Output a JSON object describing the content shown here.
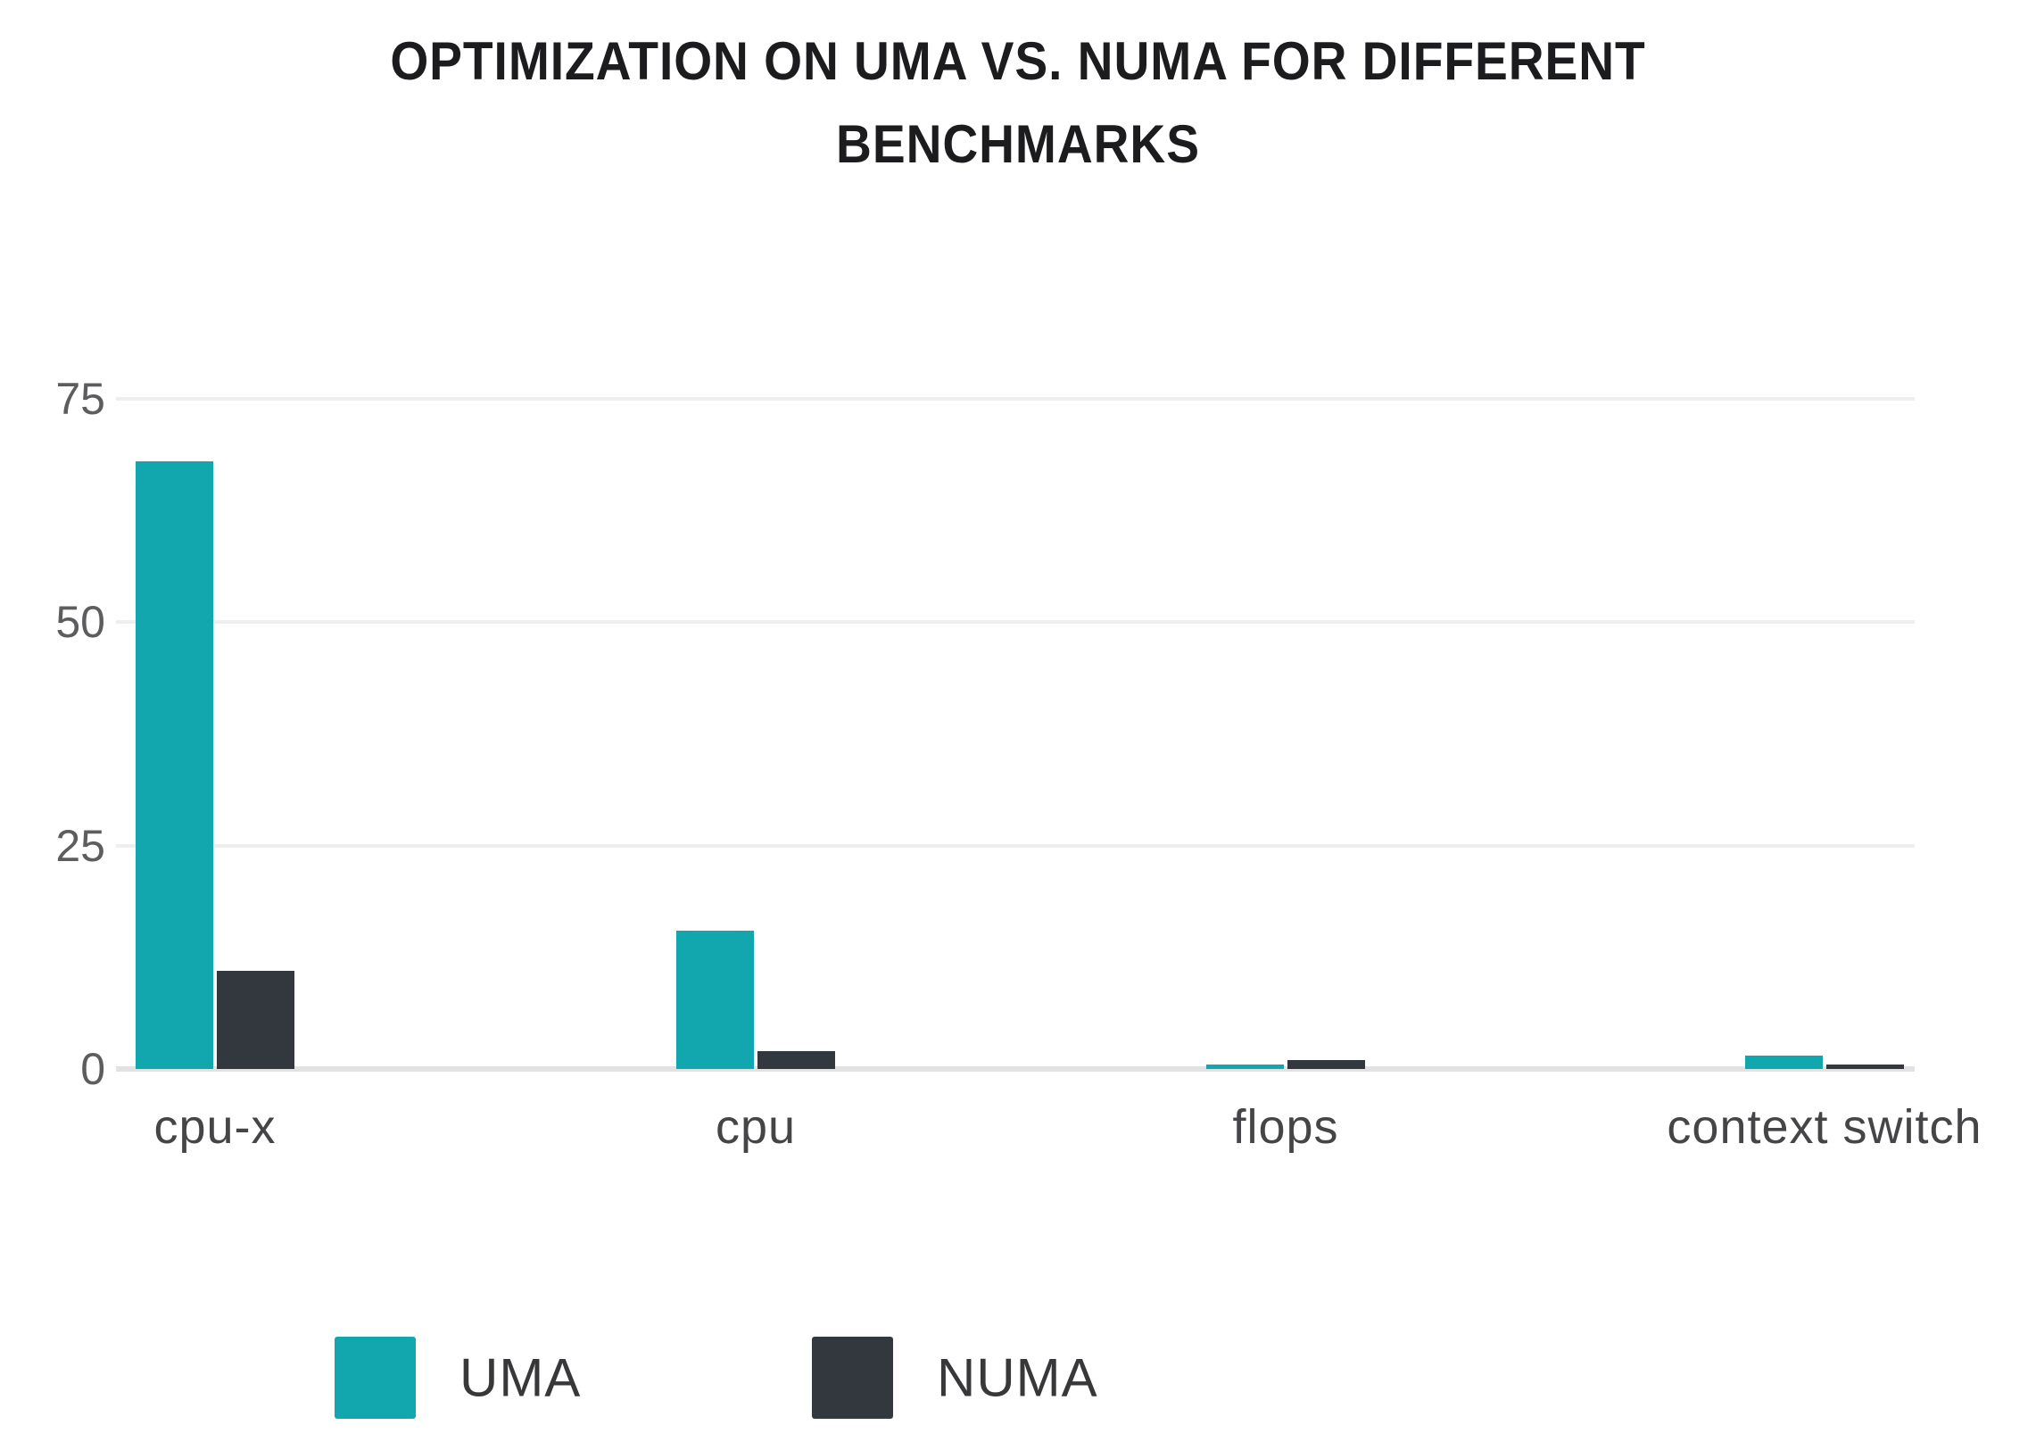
{
  "title": {
    "line1": "OPTIMIZATION ON UMA VS. NUMA FOR DIFFERENT",
    "line2": "BENCHMARKS"
  },
  "chart_data": {
    "type": "bar",
    "title": "OPTIMIZATION ON UMA VS. NUMA FOR DIFFERENT BENCHMARKS",
    "categories": [
      "cpu-x",
      "cpu",
      "flops",
      "context switch"
    ],
    "series": [
      {
        "name": "UMA",
        "color": "#12a7af",
        "values": [
          68,
          15.5,
          0.5,
          1.5
        ]
      },
      {
        "name": "NUMA",
        "color": "#33383e",
        "values": [
          11,
          2,
          1,
          0.5
        ]
      }
    ],
    "yticks": [
      0,
      25,
      50,
      75
    ],
    "ylim": [
      0,
      75
    ],
    "xlabel": "",
    "ylabel": "",
    "grid": "horizontal",
    "legend_position": "bottom"
  },
  "colors": {
    "uma": "#12a7af",
    "numa": "#33383e",
    "gridline": "#eeeeee",
    "axis_line": "#e2e2e2",
    "title_text": "#1c1c1e",
    "tick_text": "#5d5d5f",
    "category_text": "#454547"
  }
}
